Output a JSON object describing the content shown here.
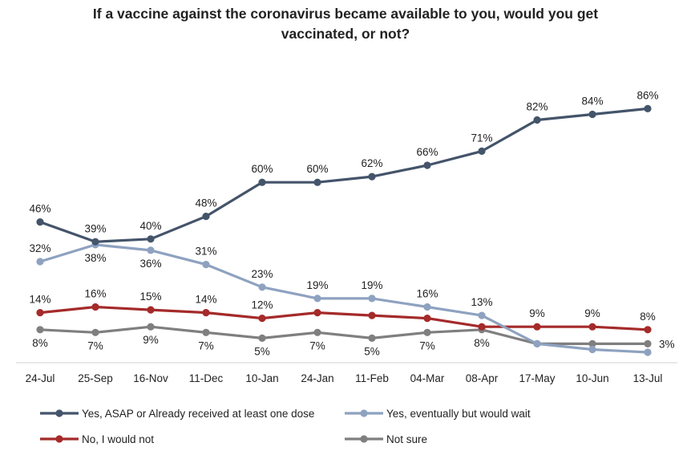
{
  "chart_data": {
    "type": "line",
    "title_lines": [
      "If a vaccine against the coronavirus became available to you, would you get",
      "vaccinated, or not?"
    ],
    "categories": [
      "24-Jul",
      "25-Sep",
      "16-Nov",
      "11-Dec",
      "10-Jan",
      "24-Jan",
      "11-Feb",
      "04-Mar",
      "08-Apr",
      "17-May",
      "10-Jun",
      "13-Jul"
    ],
    "ylim": [
      0,
      100
    ],
    "grid": false,
    "legend_position": "bottom",
    "series": [
      {
        "name": "Yes, ASAP or Already received at least one dose",
        "color": "#44546A",
        "values": [
          46,
          39,
          40,
          48,
          60,
          60,
          62,
          66,
          71,
          82,
          84,
          86
        ],
        "labels": [
          "46%",
          "39%",
          "40%",
          "48%",
          "60%",
          "60%",
          "62%",
          "66%",
          "71%",
          "82%",
          "84%",
          "86%"
        ],
        "label_placement": [
          "above",
          "above",
          "above",
          "above",
          "above",
          "above",
          "above",
          "above",
          "above",
          "above",
          "above",
          "above"
        ]
      },
      {
        "name": "Yes, eventually but would wait",
        "color": "#8EA2C0",
        "values": [
          32,
          38,
          36,
          31,
          23,
          19,
          19,
          16,
          13,
          3,
          1,
          0
        ],
        "labels": [
          "32%",
          "38%",
          "36%",
          "31%",
          "23%",
          "19%",
          "19%",
          "16%",
          "13%",
          "",
          "",
          ""
        ],
        "label_placement": [
          "above",
          "below",
          "below",
          "above",
          "above",
          "above",
          "above",
          "above",
          "above",
          "none",
          "none",
          "none"
        ]
      },
      {
        "name": "No, I would not",
        "color": "#A52A2A",
        "values": [
          14,
          16,
          15,
          14,
          12,
          14,
          13,
          12,
          9,
          9,
          9,
          8
        ],
        "labels": [
          "14%",
          "16%",
          "15%",
          "14%",
          "12%",
          "",
          "",
          "",
          "",
          "9%",
          "9%",
          "8%"
        ],
        "label_placement": [
          "above",
          "above",
          "above",
          "above",
          "above",
          "none",
          "none",
          "none",
          "none",
          "above",
          "above",
          "above"
        ]
      },
      {
        "name": "Not sure",
        "color": "#7F7F7F",
        "values": [
          8,
          7,
          9,
          7,
          5,
          7,
          5,
          7,
          8,
          3,
          3,
          3
        ],
        "labels": [
          "8%",
          "7%",
          "9%",
          "7%",
          "5%",
          "7%",
          "5%",
          "7%",
          "8%",
          "",
          "",
          "3%"
        ],
        "label_placement": [
          "below",
          "below",
          "below",
          "below",
          "below",
          "below",
          "below",
          "below",
          "below",
          "none",
          "none",
          "right"
        ]
      }
    ]
  }
}
